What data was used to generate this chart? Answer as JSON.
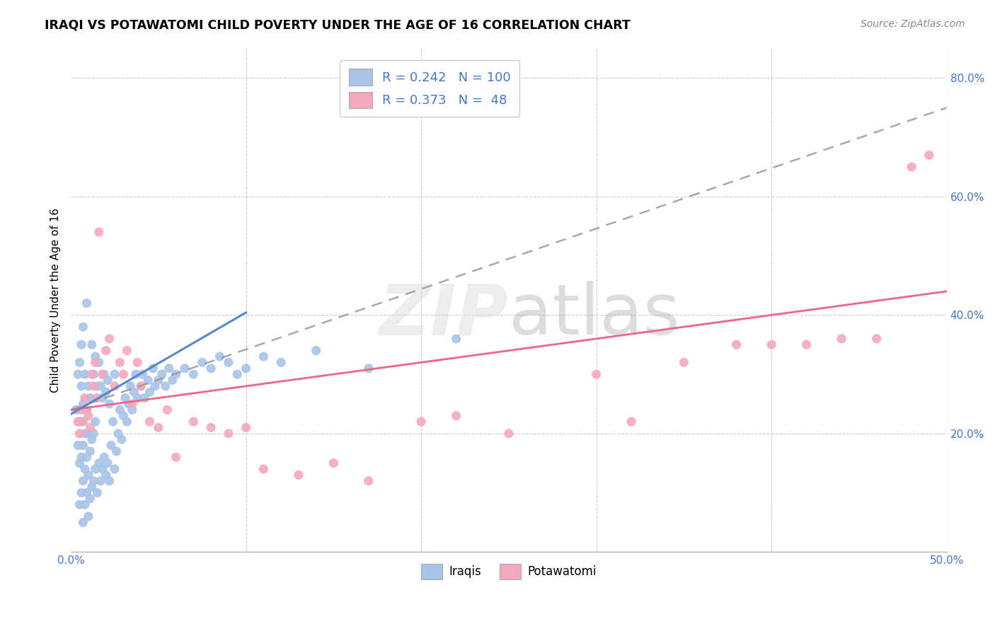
{
  "title": "IRAQI VS POTAWATOMI CHILD POVERTY UNDER THE AGE OF 16 CORRELATION CHART",
  "source": "Source: ZipAtlas.com",
  "ylabel": "Child Poverty Under the Age of 16",
  "xlim": [
    0.0,
    0.5
  ],
  "ylim": [
    0.0,
    0.85
  ],
  "ytick_labels": [
    "20.0%",
    "40.0%",
    "60.0%",
    "80.0%"
  ],
  "ytick_values": [
    0.2,
    0.4,
    0.6,
    0.8
  ],
  "legend_r_iraqis": "0.242",
  "legend_n_iraqis": "100",
  "legend_r_potawatomi": "0.373",
  "legend_n_potawatomi": "48",
  "iraqis_color": "#A8C4E8",
  "potawatomi_color": "#F4A8BC",
  "iraqis_line_color": "#5588CC",
  "potawatomi_line_color": "#EE6688",
  "watermark_color": "#DDDDDD",
  "background_color": "#ffffff",
  "grid_color": "#cccccc",
  "blue_text_color": "#4477CC",
  "tick_color": "#4477CC",
  "iraqis_x": [
    0.003,
    0.004,
    0.004,
    0.005,
    0.005,
    0.005,
    0.005,
    0.006,
    0.006,
    0.006,
    0.006,
    0.006,
    0.007,
    0.007,
    0.007,
    0.007,
    0.007,
    0.008,
    0.008,
    0.008,
    0.008,
    0.009,
    0.009,
    0.009,
    0.009,
    0.01,
    0.01,
    0.01,
    0.01,
    0.011,
    0.011,
    0.011,
    0.012,
    0.012,
    0.012,
    0.013,
    0.013,
    0.013,
    0.014,
    0.014,
    0.014,
    0.015,
    0.015,
    0.016,
    0.016,
    0.017,
    0.017,
    0.018,
    0.018,
    0.019,
    0.019,
    0.02,
    0.02,
    0.021,
    0.021,
    0.022,
    0.022,
    0.023,
    0.024,
    0.025,
    0.025,
    0.026,
    0.027,
    0.028,
    0.029,
    0.03,
    0.031,
    0.032,
    0.033,
    0.034,
    0.035,
    0.036,
    0.037,
    0.038,
    0.04,
    0.041,
    0.042,
    0.044,
    0.045,
    0.047,
    0.048,
    0.05,
    0.052,
    0.054,
    0.056,
    0.058,
    0.06,
    0.065,
    0.07,
    0.075,
    0.08,
    0.085,
    0.09,
    0.095,
    0.1,
    0.11,
    0.12,
    0.14,
    0.17,
    0.22
  ],
  "iraqis_y": [
    0.24,
    0.18,
    0.3,
    0.08,
    0.15,
    0.22,
    0.32,
    0.1,
    0.16,
    0.22,
    0.28,
    0.35,
    0.05,
    0.12,
    0.18,
    0.25,
    0.38,
    0.08,
    0.14,
    0.2,
    0.3,
    0.1,
    0.16,
    0.24,
    0.42,
    0.06,
    0.13,
    0.2,
    0.28,
    0.09,
    0.17,
    0.26,
    0.11,
    0.19,
    0.35,
    0.12,
    0.2,
    0.3,
    0.14,
    0.22,
    0.33,
    0.1,
    0.28,
    0.15,
    0.32,
    0.12,
    0.28,
    0.14,
    0.26,
    0.16,
    0.3,
    0.13,
    0.27,
    0.15,
    0.29,
    0.12,
    0.25,
    0.18,
    0.22,
    0.14,
    0.3,
    0.17,
    0.2,
    0.24,
    0.19,
    0.23,
    0.26,
    0.22,
    0.25,
    0.28,
    0.24,
    0.27,
    0.3,
    0.26,
    0.28,
    0.3,
    0.26,
    0.29,
    0.27,
    0.31,
    0.28,
    0.29,
    0.3,
    0.28,
    0.31,
    0.29,
    0.3,
    0.31,
    0.3,
    0.32,
    0.31,
    0.33,
    0.32,
    0.3,
    0.31,
    0.33,
    0.32,
    0.34,
    0.31,
    0.36
  ],
  "potawatomi_x": [
    0.004,
    0.005,
    0.006,
    0.007,
    0.008,
    0.009,
    0.01,
    0.011,
    0.012,
    0.013,
    0.014,
    0.015,
    0.016,
    0.018,
    0.02,
    0.022,
    0.025,
    0.028,
    0.03,
    0.032,
    0.035,
    0.038,
    0.04,
    0.045,
    0.05,
    0.055,
    0.06,
    0.07,
    0.08,
    0.09,
    0.1,
    0.11,
    0.13,
    0.15,
    0.17,
    0.2,
    0.22,
    0.25,
    0.3,
    0.32,
    0.35,
    0.38,
    0.4,
    0.42,
    0.44,
    0.46,
    0.48,
    0.49
  ],
  "potawatomi_y": [
    0.22,
    0.2,
    0.24,
    0.22,
    0.26,
    0.24,
    0.23,
    0.21,
    0.3,
    0.28,
    0.32,
    0.26,
    0.54,
    0.3,
    0.34,
    0.36,
    0.28,
    0.32,
    0.3,
    0.34,
    0.25,
    0.32,
    0.28,
    0.22,
    0.21,
    0.24,
    0.16,
    0.22,
    0.21,
    0.2,
    0.21,
    0.14,
    0.13,
    0.15,
    0.12,
    0.22,
    0.23,
    0.2,
    0.3,
    0.22,
    0.32,
    0.35,
    0.35,
    0.35,
    0.36,
    0.36,
    0.65,
    0.67
  ]
}
